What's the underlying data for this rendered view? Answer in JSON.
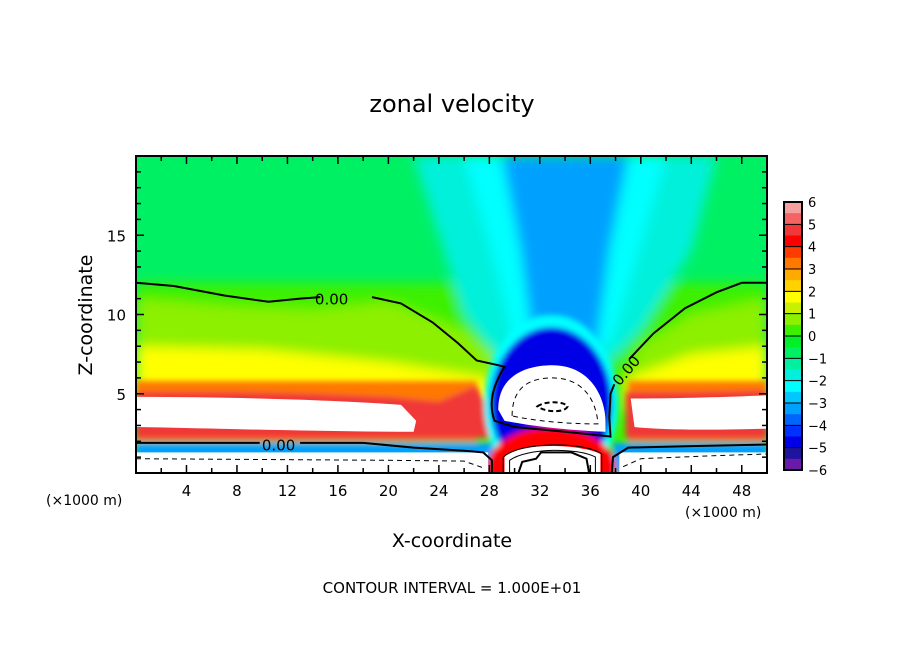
{
  "chart_data": {
    "type": "heatmap",
    "title": "zonal velocity",
    "xlabel": "X-coordinate",
    "ylabel": "Z-coordinate",
    "x_unit_label": "(×1000 m)",
    "z_unit_label": "(×1000 m)",
    "footer": "CONTOUR INTERVAL = 1.000E+01",
    "xlim": [
      0,
      50
    ],
    "ylim": [
      0,
      20
    ],
    "x_ticks": [
      4,
      8,
      12,
      16,
      20,
      24,
      28,
      32,
      36,
      40,
      44,
      48
    ],
    "y_ticks": [
      5,
      10,
      15
    ],
    "grid": false,
    "legend_position": "right",
    "colorbar": {
      "ticks": [
        "6",
        "5",
        "4",
        "3",
        "2",
        "1",
        "0",
        "−1",
        "−2",
        "−3",
        "−4",
        "−5",
        "−6"
      ],
      "range": [
        -6,
        6
      ],
      "levels": [
        {
          "lo": 5.5,
          "hi": 6,
          "color": "#f4a0a0"
        },
        {
          "lo": 5,
          "hi": 5.5,
          "color": "#f46464"
        },
        {
          "lo": 4.5,
          "hi": 5,
          "color": "#f03838"
        },
        {
          "lo": 4,
          "hi": 4.5,
          "color": "#ff0000"
        },
        {
          "lo": 3.5,
          "hi": 4,
          "color": "#ff3c00"
        },
        {
          "lo": 3,
          "hi": 3.5,
          "color": "#ff7800"
        },
        {
          "lo": 2.5,
          "hi": 3,
          "color": "#ffaa00"
        },
        {
          "lo": 2,
          "hi": 2.5,
          "color": "#ffd200"
        },
        {
          "lo": 1.5,
          "hi": 2,
          "color": "#ffff00"
        },
        {
          "lo": 1,
          "hi": 1.5,
          "color": "#c8f000"
        },
        {
          "lo": 0.5,
          "hi": 1,
          "color": "#8cf000"
        },
        {
          "lo": 0,
          "hi": 0.5,
          "color": "#3cf000"
        },
        {
          "lo": -0.5,
          "hi": 0,
          "color": "#00f028"
        },
        {
          "lo": -1,
          "hi": -0.5,
          "color": "#00f064"
        },
        {
          "lo": -1.5,
          "hi": -1,
          "color": "#00f0a0"
        },
        {
          "lo": -2,
          "hi": -1.5,
          "color": "#00f0dc"
        },
        {
          "lo": -2.5,
          "hi": -2,
          "color": "#00ffff"
        },
        {
          "lo": -3,
          "hi": -2.5,
          "color": "#00c8ff"
        },
        {
          "lo": -3.5,
          "hi": -3,
          "color": "#00a0ff"
        },
        {
          "lo": -4,
          "hi": -3.5,
          "color": "#0064ff"
        },
        {
          "lo": -4.5,
          "hi": -4,
          "color": "#0032ff"
        },
        {
          "lo": -5,
          "hi": -4.5,
          "color": "#0000e6"
        },
        {
          "lo": -5.5,
          "hi": -5,
          "color": "#1e14a0"
        },
        {
          "lo": -6,
          "hi": -5.5,
          "color": "#6a1aa8"
        }
      ]
    },
    "contour_labels": [
      {
        "text": "0.00",
        "x": 15.5,
        "z": 11.0
      },
      {
        "text": "0.00",
        "x": 11.3,
        "z": 1.8
      },
      {
        "text": "0.00",
        "x": 38.8,
        "z": 6.5
      }
    ],
    "features": [
      {
        "name": "upper-left positive jet",
        "x_range": [
          0,
          22
        ],
        "z_range": [
          2.6,
          4.8
        ],
        "peak": 6
      },
      {
        "name": "upper-right positive jet",
        "x_range": [
          38.5,
          50
        ],
        "z_range": [
          2.6,
          4.8
        ],
        "peak": 6
      },
      {
        "name": "central negative dome",
        "x_range": [
          28.5,
          37.5
        ],
        "z_range": [
          2.0,
          7.0
        ],
        "peak": -6
      },
      {
        "name": "central negative column aloft",
        "x_range": [
          29,
          38
        ],
        "z_range": [
          7,
          20
        ],
        "peak": -3.5
      },
      {
        "name": "near-surface negative layer",
        "x_range": [
          0,
          28
        ],
        "z_range": [
          0,
          1.6
        ],
        "peak": -6
      },
      {
        "name": "near-surface positive dome",
        "x_range": [
          29,
          37
        ],
        "z_range": [
          0,
          2.0
        ],
        "peak": 6
      }
    ]
  }
}
